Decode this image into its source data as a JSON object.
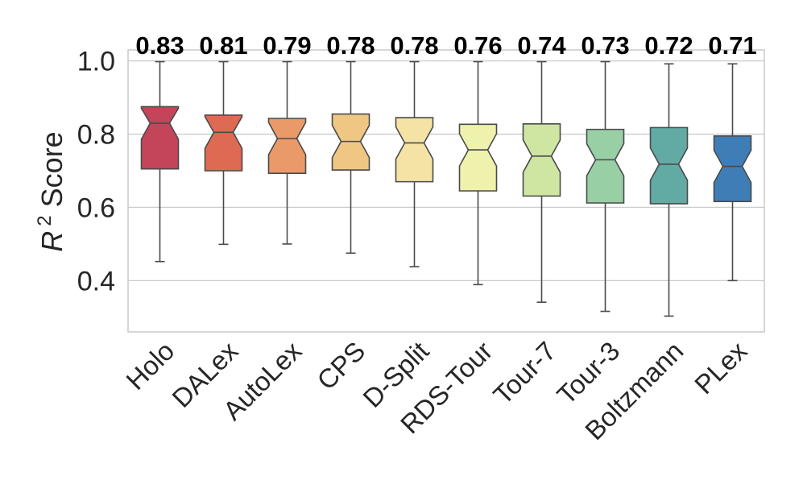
{
  "chart_data": {
    "type": "boxplot",
    "notched": true,
    "ylabel_italic": "R",
    "ylabel_superscript": "2",
    "ylabel_rest": "Score",
    "ylim": [
      0.26,
      1.03
    ],
    "yticks": [
      0.4,
      0.6,
      0.8,
      1.0
    ],
    "ytick_labels": [
      "0.4",
      "0.6",
      "0.8",
      "1.0"
    ],
    "grid": true,
    "categories": [
      "Holo",
      "DALex",
      "AutoLex",
      "CPS",
      "D-Split",
      "RDS-Tour",
      "Tour-7",
      "Tour-3",
      "Boltzmann",
      "PLex"
    ],
    "median_labels": [
      "0.83",
      "0.81",
      "0.79",
      "0.78",
      "0.78",
      "0.76",
      "0.74",
      "0.73",
      "0.72",
      "0.71"
    ],
    "series": [
      {
        "name": "Holo",
        "min": 0.452,
        "q1": 0.705,
        "median": 0.83,
        "q3": 0.875,
        "max": 0.998,
        "color": "#c44459"
      },
      {
        "name": "DALex",
        "min": 0.499,
        "q1": 0.7,
        "median": 0.805,
        "q3": 0.852,
        "max": 0.998,
        "color": "#de6a54"
      },
      {
        "name": "AutoLex",
        "min": 0.5,
        "q1": 0.693,
        "median": 0.788,
        "q3": 0.843,
        "max": 0.998,
        "color": "#e99a68"
      },
      {
        "name": "CPS",
        "min": 0.475,
        "q1": 0.702,
        "median": 0.78,
        "q3": 0.855,
        "max": 0.998,
        "color": "#f0c683"
      },
      {
        "name": "D-Split",
        "min": 0.438,
        "q1": 0.67,
        "median": 0.776,
        "q3": 0.845,
        "max": 0.998,
        "color": "#f5e3a5"
      },
      {
        "name": "RDS-Tour",
        "min": 0.389,
        "q1": 0.645,
        "median": 0.757,
        "q3": 0.827,
        "max": 0.998,
        "color": "#eef2ad"
      },
      {
        "name": "Tour-7",
        "min": 0.341,
        "q1": 0.631,
        "median": 0.74,
        "q3": 0.828,
        "max": 0.998,
        "color": "#cfe6a3"
      },
      {
        "name": "Tour-3",
        "min": 0.316,
        "q1": 0.612,
        "median": 0.73,
        "q3": 0.813,
        "max": 0.998,
        "color": "#98cfa5"
      },
      {
        "name": "Boltzmann",
        "min": 0.303,
        "q1": 0.61,
        "median": 0.718,
        "q3": 0.818,
        "max": 0.992,
        "color": "#62aaa4"
      },
      {
        "name": "PLex",
        "min": 0.4,
        "q1": 0.616,
        "median": 0.712,
        "q3": 0.795,
        "max": 0.992,
        "color": "#3f7db7"
      }
    ]
  }
}
